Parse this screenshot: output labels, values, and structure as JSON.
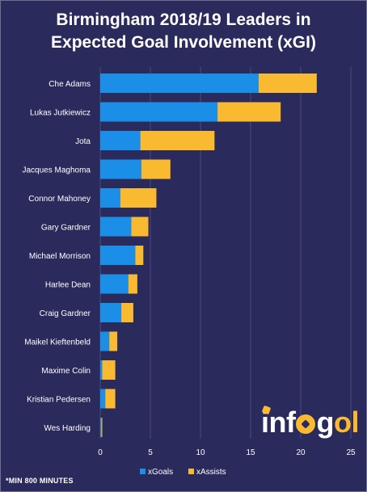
{
  "chart_data": {
    "type": "bar",
    "orientation": "horizontal",
    "stacked": true,
    "title_lines": [
      "Birmingham 2018/19 Leaders in",
      "Expected Goal Involvement (xGI)"
    ],
    "categories": [
      "Che Adams",
      "Lukas Jutkiewicz",
      "Jota",
      "Jacques Maghoma",
      "Connor Mahoney",
      "Gary Gardner",
      "Michael Morrison",
      "Harlee Dean",
      "Craig Gardner",
      "Maikel Kieftenbeld",
      "Maxime Colin",
      "Kristian Pedersen",
      "Wes Harding"
    ],
    "series": [
      {
        "name": "xGoals",
        "color": "#1b8fe8",
        "values": [
          15.8,
          11.7,
          4.0,
          4.1,
          2.0,
          3.1,
          3.5,
          2.8,
          2.1,
          0.9,
          0.2,
          0.5,
          0.1
        ]
      },
      {
        "name": "xAssists",
        "color": "#f9ba32",
        "values": [
          5.8,
          6.3,
          7.4,
          2.9,
          3.6,
          1.7,
          0.8,
          0.9,
          1.2,
          0.8,
          1.3,
          1.0,
          0.1
        ]
      }
    ],
    "xticks": [
      0,
      5,
      10,
      15,
      20,
      25
    ],
    "xlim": [
      0,
      25
    ],
    "grid": "vertical",
    "legend": "bottom"
  },
  "colors": {
    "background": "#2b2a5c",
    "grid": "#4c4b7d",
    "text": "#ffffff"
  },
  "footnote": "*MIN 800 MINUTES",
  "logo": {
    "text": "infogol",
    "segments": [
      "inf",
      "o",
      "g",
      "ol"
    ]
  }
}
